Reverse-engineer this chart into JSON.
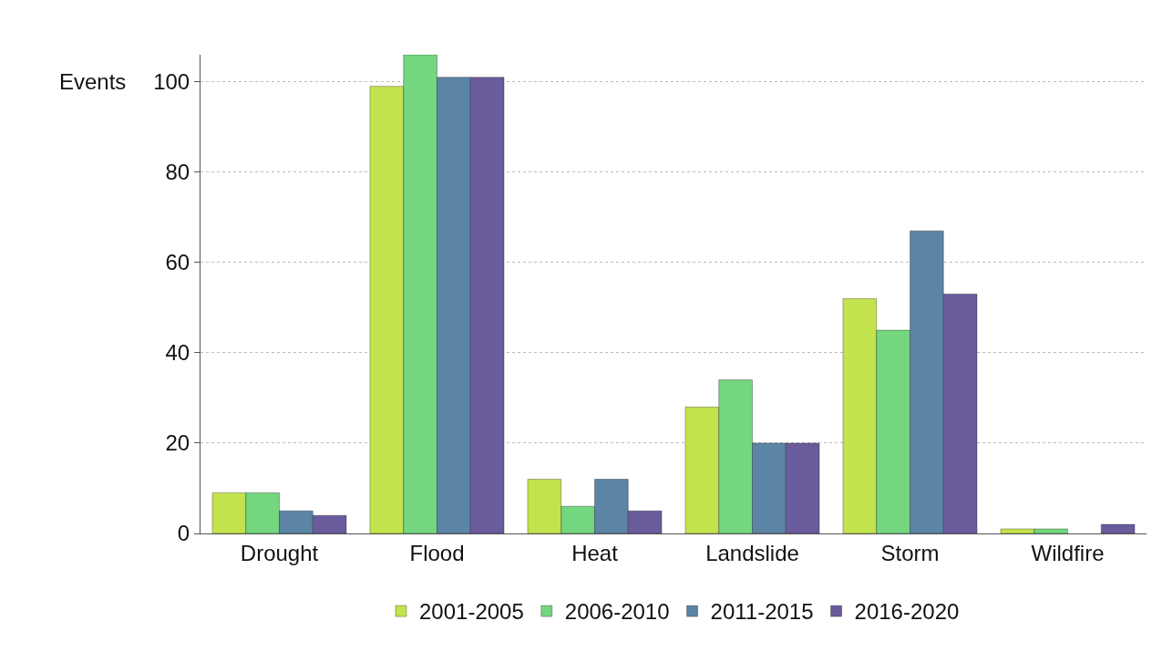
{
  "chart_data": {
    "type": "bar",
    "ylabel": "Events",
    "categories": [
      "Drought",
      "Flood",
      "Heat",
      "Landslide",
      "Storm",
      "Wildfire"
    ],
    "series": [
      {
        "name": "2001-2005",
        "color": "#c3e34e",
        "values": [
          9,
          99,
          12,
          28,
          52,
          1
        ]
      },
      {
        "name": "2006-2010",
        "color": "#74d67e",
        "values": [
          9,
          106,
          6,
          34,
          45,
          1
        ]
      },
      {
        "name": "2011-2015",
        "color": "#5b84a5",
        "values": [
          5,
          101,
          12,
          20,
          67,
          null
        ]
      },
      {
        "name": "2016-2020",
        "color": "#6a5b9c",
        "values": [
          4,
          101,
          5,
          20,
          53,
          2
        ]
      }
    ],
    "ylim": [
      0,
      106
    ],
    "yticks": [
      0,
      20,
      40,
      60,
      80,
      100
    ],
    "grid": "y",
    "legend": "bottom"
  }
}
